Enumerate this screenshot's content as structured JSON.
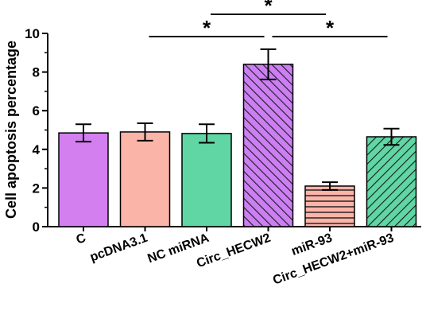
{
  "chart_data": {
    "type": "bar",
    "title": "",
    "xlabel": "",
    "ylabel": "Cell apoptosis percentage",
    "ylim": [
      0,
      10
    ],
    "yticks": [
      "0",
      "2",
      "4",
      "6",
      "8",
      "10"
    ],
    "categories": [
      "C",
      "pcDNA3.1",
      "NC miRNA",
      "Circ_HECW2",
      "miR-93",
      "Circ_HECW2+miR-93"
    ],
    "values": [
      4.85,
      4.9,
      4.82,
      8.4,
      2.1,
      4.65
    ],
    "errors": [
      0.45,
      0.45,
      0.48,
      0.78,
      0.2,
      0.42
    ],
    "colors": [
      "#d47ff0",
      "#fbb4a8",
      "#5fd6a4",
      "#cc7ff2",
      "#fbb4a8",
      "#5fd6a4"
    ],
    "patterns": [
      "solid",
      "solid",
      "solid",
      "diagonal-right",
      "horizontal",
      "diagonal-left"
    ],
    "grid": false,
    "significance": [
      {
        "from": 1,
        "to": 3,
        "label": "*"
      },
      {
        "from": 2,
        "to": 4,
        "label": "*"
      },
      {
        "from": 3,
        "to": 5,
        "label": "*"
      }
    ]
  }
}
